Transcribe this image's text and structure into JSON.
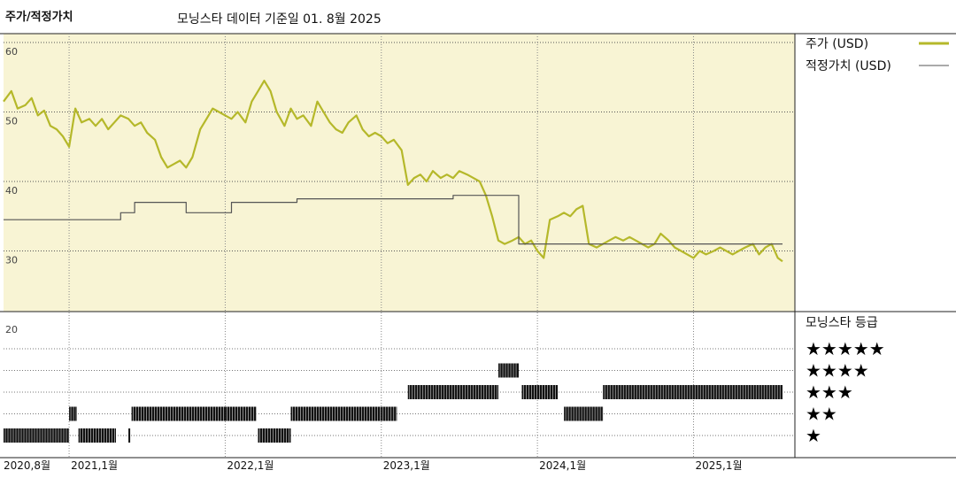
{
  "header": {
    "title": "주가/적정가치",
    "subtitle": "모닝스타 데이터 기준일 01. 8월 2025"
  },
  "legend": {
    "price_label": "주가 (USD)",
    "fair_label": "적정가치 (USD)",
    "rating_title": "모닝스타 등급"
  },
  "colors": {
    "price": "#b5b82a",
    "fair_value": "#555555",
    "plot_bg": "#f8f4d4",
    "rating_bar": "#111111"
  },
  "chart_data": {
    "type": "line",
    "title": "주가/적정가치",
    "ylim": [
      20,
      60
    ],
    "y_ticks": [
      "60",
      "50",
      "40",
      "30",
      "20"
    ],
    "x_ticks": [
      {
        "label": "2020,8월",
        "t": 2020.58
      },
      {
        "label": "2021,1월",
        "t": 2021.0
      },
      {
        "label": "2022,1월",
        "t": 2022.0
      },
      {
        "label": "2023,1월",
        "t": 2023.0
      },
      {
        "label": "2024,1월",
        "t": 2024.0
      },
      {
        "label": "2025,1월",
        "t": 2025.0
      }
    ],
    "xlim": [
      2020.58,
      2025.57
    ],
    "series": [
      {
        "name": "주가 (USD)",
        "kind": "price",
        "points": [
          [
            2020.58,
            51.5
          ],
          [
            2020.63,
            53.0
          ],
          [
            2020.67,
            50.5
          ],
          [
            2020.72,
            51.0
          ],
          [
            2020.76,
            52.0
          ],
          [
            2020.8,
            49.5
          ],
          [
            2020.84,
            50.2
          ],
          [
            2020.88,
            48.0
          ],
          [
            2020.92,
            47.5
          ],
          [
            2020.96,
            46.5
          ],
          [
            2021.0,
            45.0
          ],
          [
            2021.04,
            50.5
          ],
          [
            2021.08,
            48.5
          ],
          [
            2021.13,
            49.0
          ],
          [
            2021.17,
            48.0
          ],
          [
            2021.21,
            49.0
          ],
          [
            2021.25,
            47.5
          ],
          [
            2021.29,
            48.5
          ],
          [
            2021.33,
            49.5
          ],
          [
            2021.38,
            49.0
          ],
          [
            2021.42,
            48.0
          ],
          [
            2021.46,
            48.5
          ],
          [
            2021.5,
            47.0
          ],
          [
            2021.55,
            46.0
          ],
          [
            2021.59,
            43.5
          ],
          [
            2021.63,
            42.0
          ],
          [
            2021.67,
            42.5
          ],
          [
            2021.71,
            43.0
          ],
          [
            2021.75,
            42.0
          ],
          [
            2021.79,
            43.5
          ],
          [
            2021.84,
            47.5
          ],
          [
            2021.88,
            49.0
          ],
          [
            2021.92,
            50.5
          ],
          [
            2021.96,
            50.0
          ],
          [
            2022.0,
            49.5
          ],
          [
            2022.04,
            49.0
          ],
          [
            2022.08,
            50.0
          ],
          [
            2022.13,
            48.5
          ],
          [
            2022.17,
            51.5
          ],
          [
            2022.21,
            53.0
          ],
          [
            2022.25,
            54.5
          ],
          [
            2022.29,
            53.0
          ],
          [
            2022.33,
            50.0
          ],
          [
            2022.38,
            48.0
          ],
          [
            2022.42,
            50.5
          ],
          [
            2022.46,
            49.0
          ],
          [
            2022.5,
            49.5
          ],
          [
            2022.55,
            48.0
          ],
          [
            2022.59,
            51.5
          ],
          [
            2022.63,
            50.0
          ],
          [
            2022.67,
            48.5
          ],
          [
            2022.71,
            47.5
          ],
          [
            2022.75,
            47.0
          ],
          [
            2022.79,
            48.5
          ],
          [
            2022.84,
            49.5
          ],
          [
            2022.88,
            47.5
          ],
          [
            2022.92,
            46.5
          ],
          [
            2022.96,
            47.0
          ],
          [
            2023.0,
            46.5
          ],
          [
            2023.04,
            45.5
          ],
          [
            2023.08,
            46.0
          ],
          [
            2023.13,
            44.5
          ],
          [
            2023.17,
            39.5
          ],
          [
            2023.21,
            40.5
          ],
          [
            2023.25,
            41.0
          ],
          [
            2023.29,
            40.0
          ],
          [
            2023.33,
            41.5
          ],
          [
            2023.38,
            40.5
          ],
          [
            2023.42,
            41.0
          ],
          [
            2023.46,
            40.5
          ],
          [
            2023.5,
            41.5
          ],
          [
            2023.55,
            41.0
          ],
          [
            2023.59,
            40.5
          ],
          [
            2023.63,
            40.0
          ],
          [
            2023.67,
            38.0
          ],
          [
            2023.71,
            35.0
          ],
          [
            2023.75,
            31.5
          ],
          [
            2023.79,
            31.0
          ],
          [
            2023.84,
            31.5
          ],
          [
            2023.88,
            32.0
          ],
          [
            2023.92,
            31.0
          ],
          [
            2023.96,
            31.5
          ],
          [
            2024.0,
            30.0
          ],
          [
            2024.04,
            29.0
          ],
          [
            2024.08,
            34.5
          ],
          [
            2024.13,
            35.0
          ],
          [
            2024.17,
            35.5
          ],
          [
            2024.21,
            35.0
          ],
          [
            2024.25,
            36.0
          ],
          [
            2024.29,
            36.5
          ],
          [
            2024.33,
            31.0
          ],
          [
            2024.38,
            30.5
          ],
          [
            2024.42,
            31.0
          ],
          [
            2024.46,
            31.5
          ],
          [
            2024.5,
            32.0
          ],
          [
            2024.55,
            31.5
          ],
          [
            2024.59,
            32.0
          ],
          [
            2024.63,
            31.5
          ],
          [
            2024.67,
            31.0
          ],
          [
            2024.71,
            30.5
          ],
          [
            2024.75,
            31.0
          ],
          [
            2024.79,
            32.5
          ],
          [
            2024.84,
            31.5
          ],
          [
            2024.88,
            30.5
          ],
          [
            2024.92,
            30.0
          ],
          [
            2024.96,
            29.5
          ],
          [
            2025.0,
            29.0
          ],
          [
            2025.04,
            30.0
          ],
          [
            2025.08,
            29.5
          ],
          [
            2025.13,
            30.0
          ],
          [
            2025.17,
            30.5
          ],
          [
            2025.21,
            30.0
          ],
          [
            2025.25,
            29.5
          ],
          [
            2025.29,
            30.0
          ],
          [
            2025.33,
            30.5
          ],
          [
            2025.38,
            31.0
          ],
          [
            2025.42,
            29.5
          ],
          [
            2025.46,
            30.5
          ],
          [
            2025.5,
            31.0
          ],
          [
            2025.54,
            29.0
          ],
          [
            2025.57,
            28.5
          ]
        ]
      },
      {
        "name": "적정가치 (USD)",
        "kind": "fair",
        "points": [
          [
            2020.58,
            34.5
          ],
          [
            2021.33,
            34.5
          ],
          [
            2021.33,
            35.5
          ],
          [
            2021.42,
            35.5
          ],
          [
            2021.42,
            37.0
          ],
          [
            2021.75,
            37.0
          ],
          [
            2021.75,
            35.5
          ],
          [
            2022.04,
            35.5
          ],
          [
            2022.04,
            37.0
          ],
          [
            2022.46,
            37.0
          ],
          [
            2022.46,
            37.5
          ],
          [
            2023.46,
            37.5
          ],
          [
            2023.46,
            38.0
          ],
          [
            2023.88,
            38.0
          ],
          [
            2023.88,
            31.0
          ],
          [
            2025.57,
            31.0
          ]
        ]
      }
    ],
    "rating_legend": [
      "★★★★★",
      "★★★★",
      "★★★",
      "★★",
      "★"
    ],
    "ratings": [
      {
        "start": 2020.58,
        "end": 2021.0,
        "stars": 1
      },
      {
        "start": 2021.0,
        "end": 2021.05,
        "stars": 2
      },
      {
        "start": 2021.06,
        "end": 2021.3,
        "stars": 1
      },
      {
        "start": 2021.38,
        "end": 2021.39,
        "stars": 1
      },
      {
        "start": 2021.4,
        "end": 2022.0,
        "stars": 2
      },
      {
        "start": 2022.0,
        "end": 2022.2,
        "stars": 2
      },
      {
        "start": 2022.21,
        "end": 2022.42,
        "stars": 1
      },
      {
        "start": 2022.42,
        "end": 2023.0,
        "stars": 2
      },
      {
        "start": 2023.0,
        "end": 2023.1,
        "stars": 2
      },
      {
        "start": 2023.17,
        "end": 2023.75,
        "stars": 3
      },
      {
        "start": 2023.75,
        "end": 2023.88,
        "stars": 4
      },
      {
        "start": 2023.9,
        "end": 2024.13,
        "stars": 3
      },
      {
        "start": 2024.17,
        "end": 2024.42,
        "stars": 2
      },
      {
        "start": 2024.42,
        "end": 2025.57,
        "stars": 3
      }
    ]
  }
}
